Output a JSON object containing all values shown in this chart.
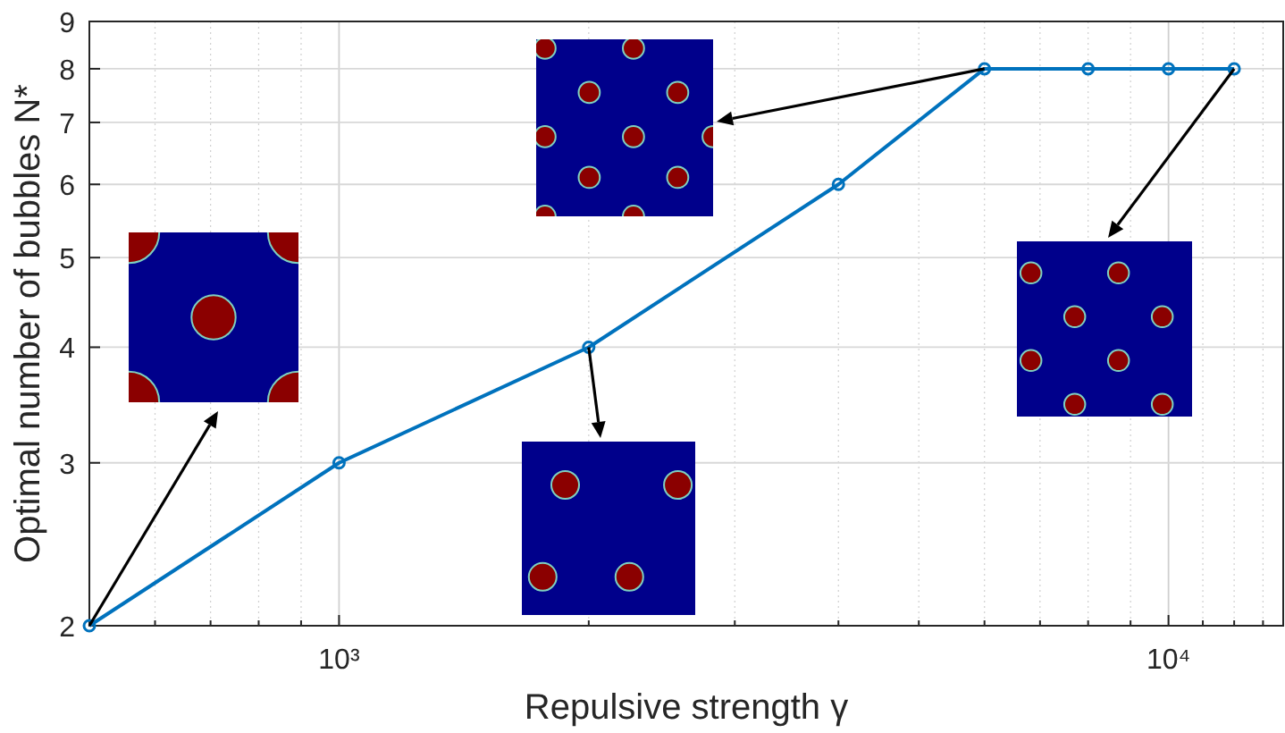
{
  "chart_data": {
    "type": "line",
    "xlabel": "Repulsive strength γ",
    "ylabel": "Optimal number of bubbles N*",
    "log": "xy",
    "grid": true,
    "marker": "circle",
    "line_style": "solid",
    "x": [
      500,
      1000,
      2000,
      4000,
      6000,
      8000,
      10000,
      12000
    ],
    "series": [
      {
        "color": "#0072bd",
        "values": [
          2,
          3,
          4,
          6,
          8,
          8,
          8,
          8
        ]
      }
    ],
    "xlim": [
      500,
      13750
    ],
    "ylim": [
      2,
      9
    ],
    "xticks": [
      {
        "value": 500,
        "label": null
      },
      {
        "value": 600,
        "label": null
      },
      {
        "value": 700,
        "label": null
      },
      {
        "value": 800,
        "label": null
      },
      {
        "value": 900,
        "label": null
      },
      {
        "value": 1000,
        "label": "10³"
      },
      {
        "value": 2000,
        "label": null
      },
      {
        "value": 3000,
        "label": null
      },
      {
        "value": 4000,
        "label": null
      },
      {
        "value": 5000,
        "label": null
      },
      {
        "value": 6000,
        "label": null
      },
      {
        "value": 7000,
        "label": null
      },
      {
        "value": 8000,
        "label": null
      },
      {
        "value": 9000,
        "label": null
      },
      {
        "value": 10000,
        "label": "10⁴"
      },
      {
        "value": 11000,
        "label": null
      },
      {
        "value": 12000,
        "label": null
      },
      {
        "value": 13000,
        "label": null
      }
    ],
    "yticks": [
      2,
      3,
      4,
      5,
      6,
      7,
      8,
      9
    ]
  }
}
